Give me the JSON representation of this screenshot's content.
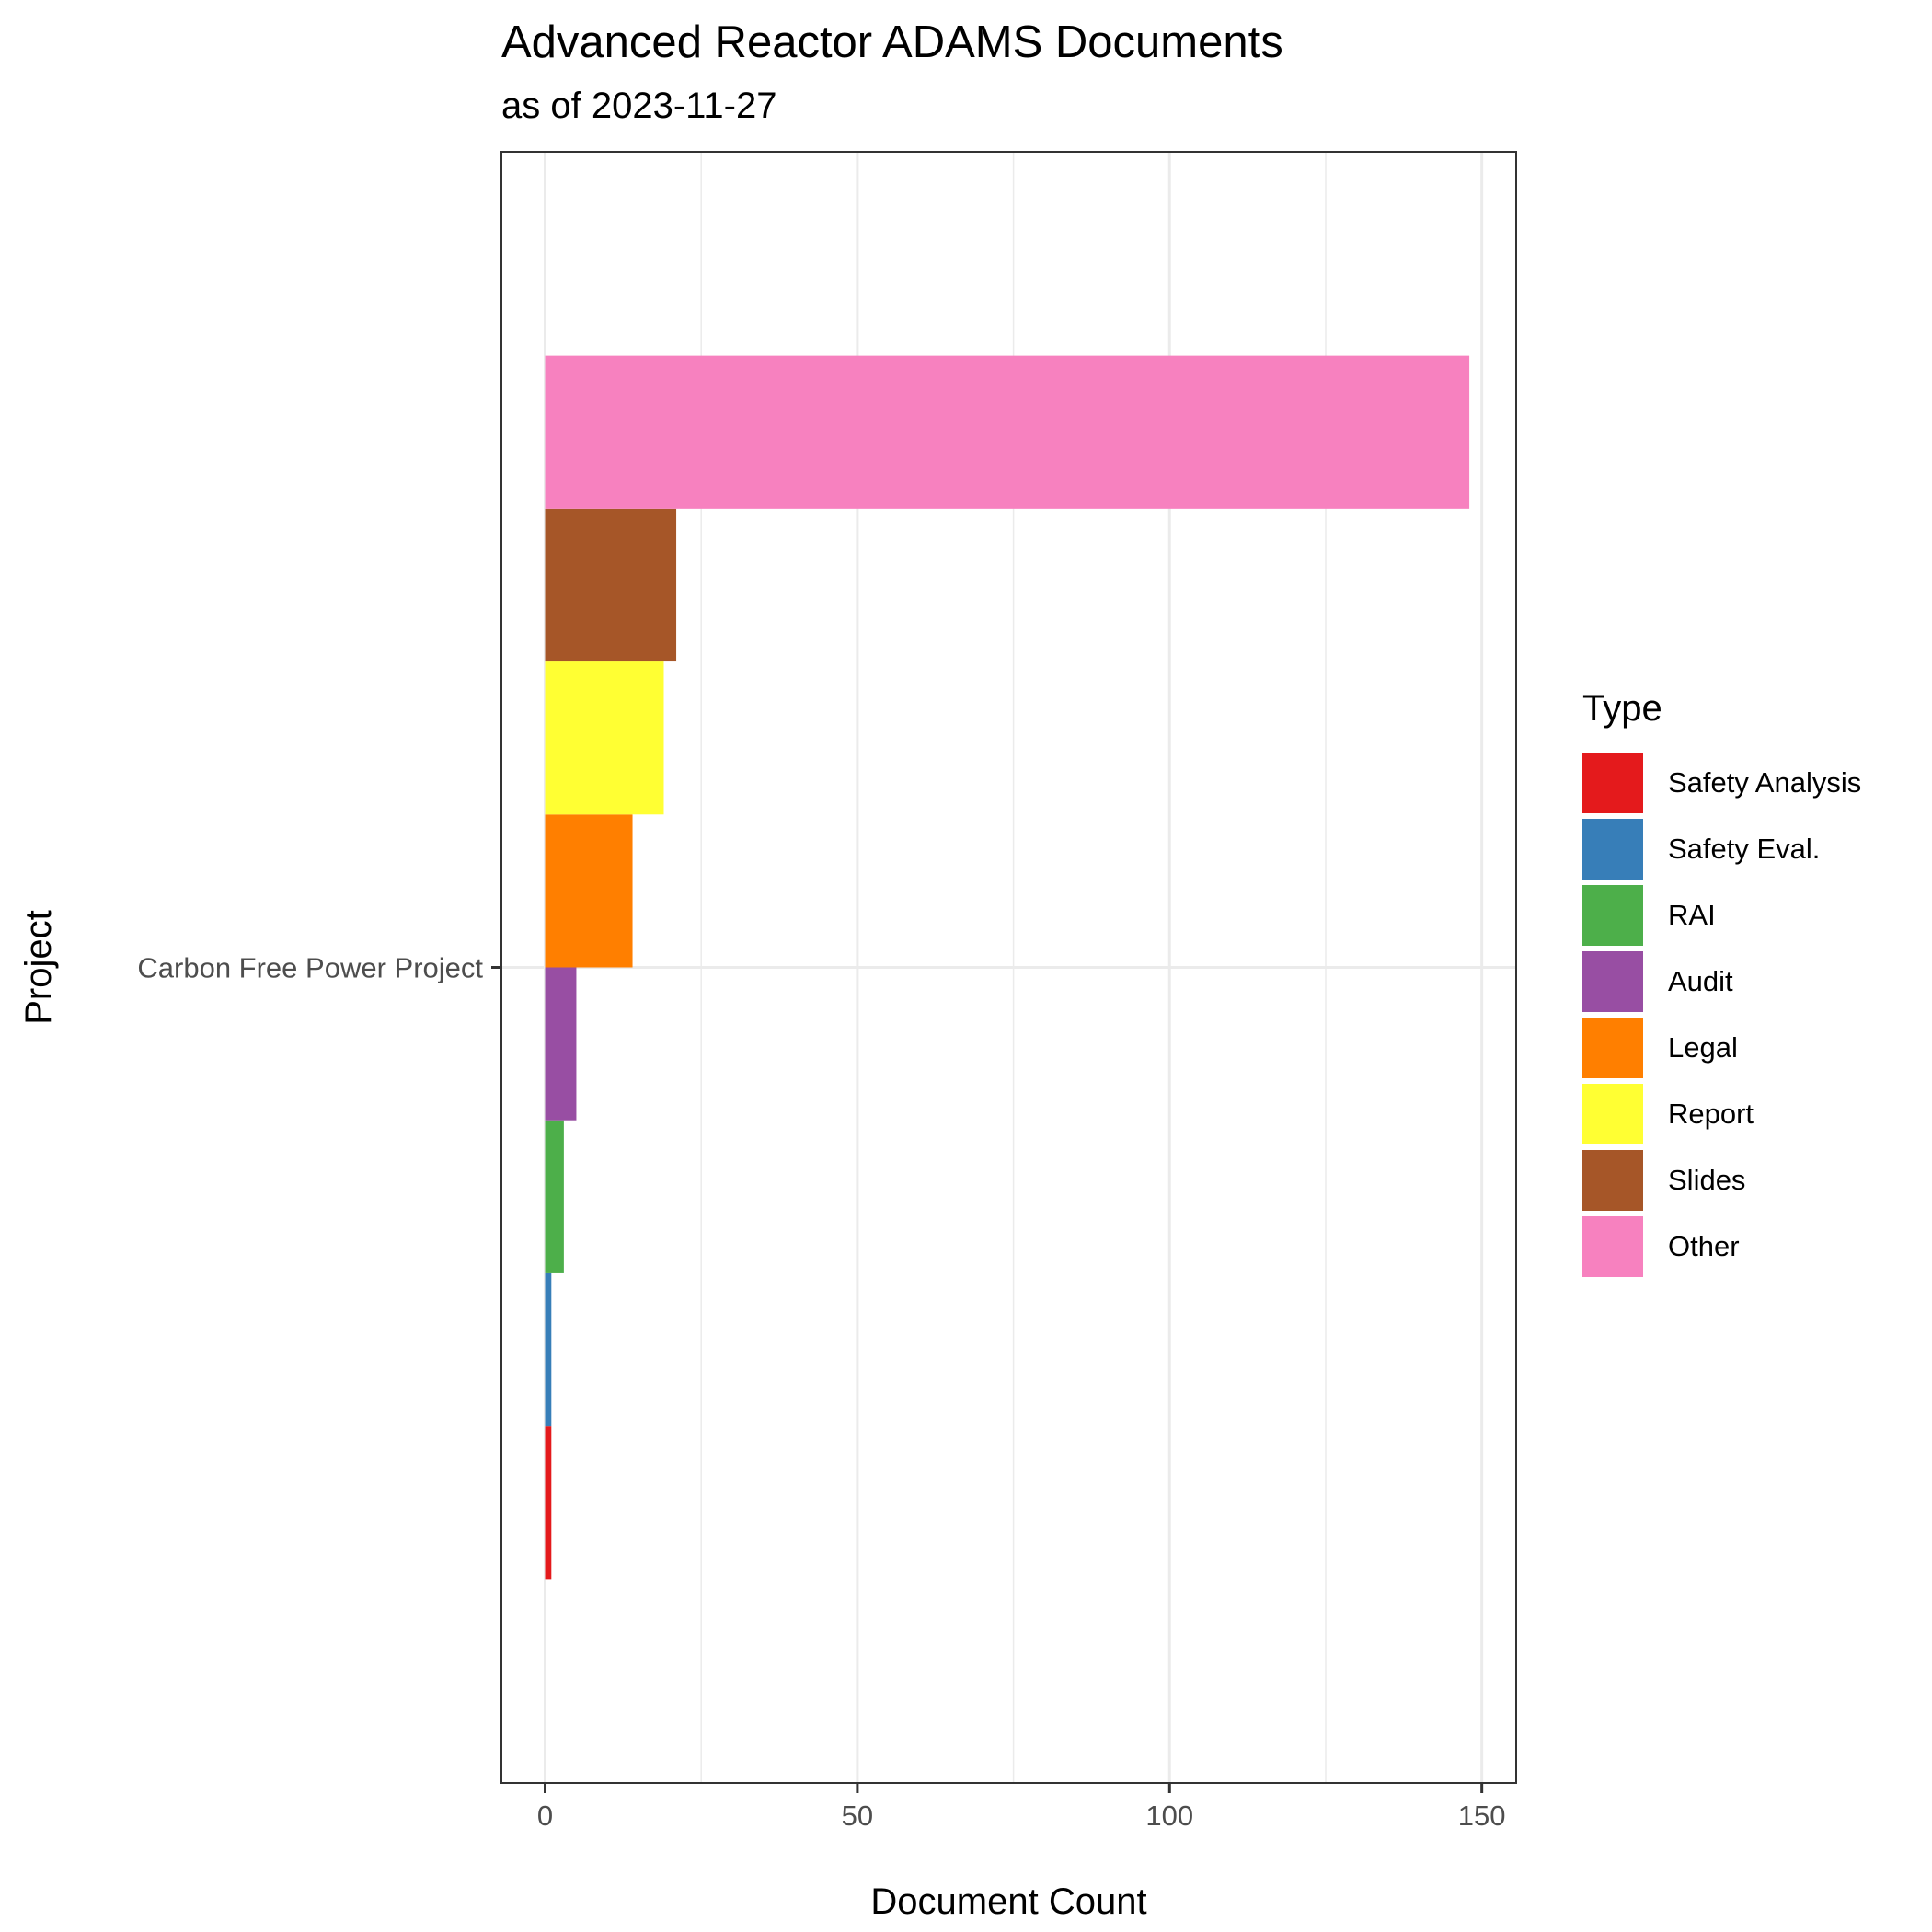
{
  "title": "Advanced Reactor ADAMS Documents",
  "subtitle": "as of 2023-11-27",
  "chart_data": {
    "type": "bar",
    "orientation": "horizontal",
    "position": "dodge",
    "xlabel": "Document Count",
    "ylabel": "Project",
    "categories": [
      "Carbon Free Power Project"
    ],
    "xlim": [
      -7,
      155.5
    ],
    "x_ticks": [
      0,
      50,
      100,
      150
    ],
    "grid": true,
    "legend_title": "Type",
    "legend_position": "right",
    "series": [
      {
        "name": "Safety Analysis",
        "color": "#E41A1C",
        "values": [
          1
        ]
      },
      {
        "name": "Safety Eval.",
        "color": "#377EB8",
        "values": [
          1
        ]
      },
      {
        "name": "RAI",
        "color": "#4DAF4A",
        "values": [
          3
        ]
      },
      {
        "name": "Audit",
        "color": "#984EA3",
        "values": [
          5
        ]
      },
      {
        "name": "Legal",
        "color": "#FF7F00",
        "values": [
          14
        ]
      },
      {
        "name": "Report",
        "color": "#FFFF33",
        "values": [
          19
        ]
      },
      {
        "name": "Slides",
        "color": "#A65628",
        "values": [
          21
        ]
      },
      {
        "name": "Other",
        "color": "#F781BF",
        "values": [
          148
        ]
      }
    ]
  }
}
